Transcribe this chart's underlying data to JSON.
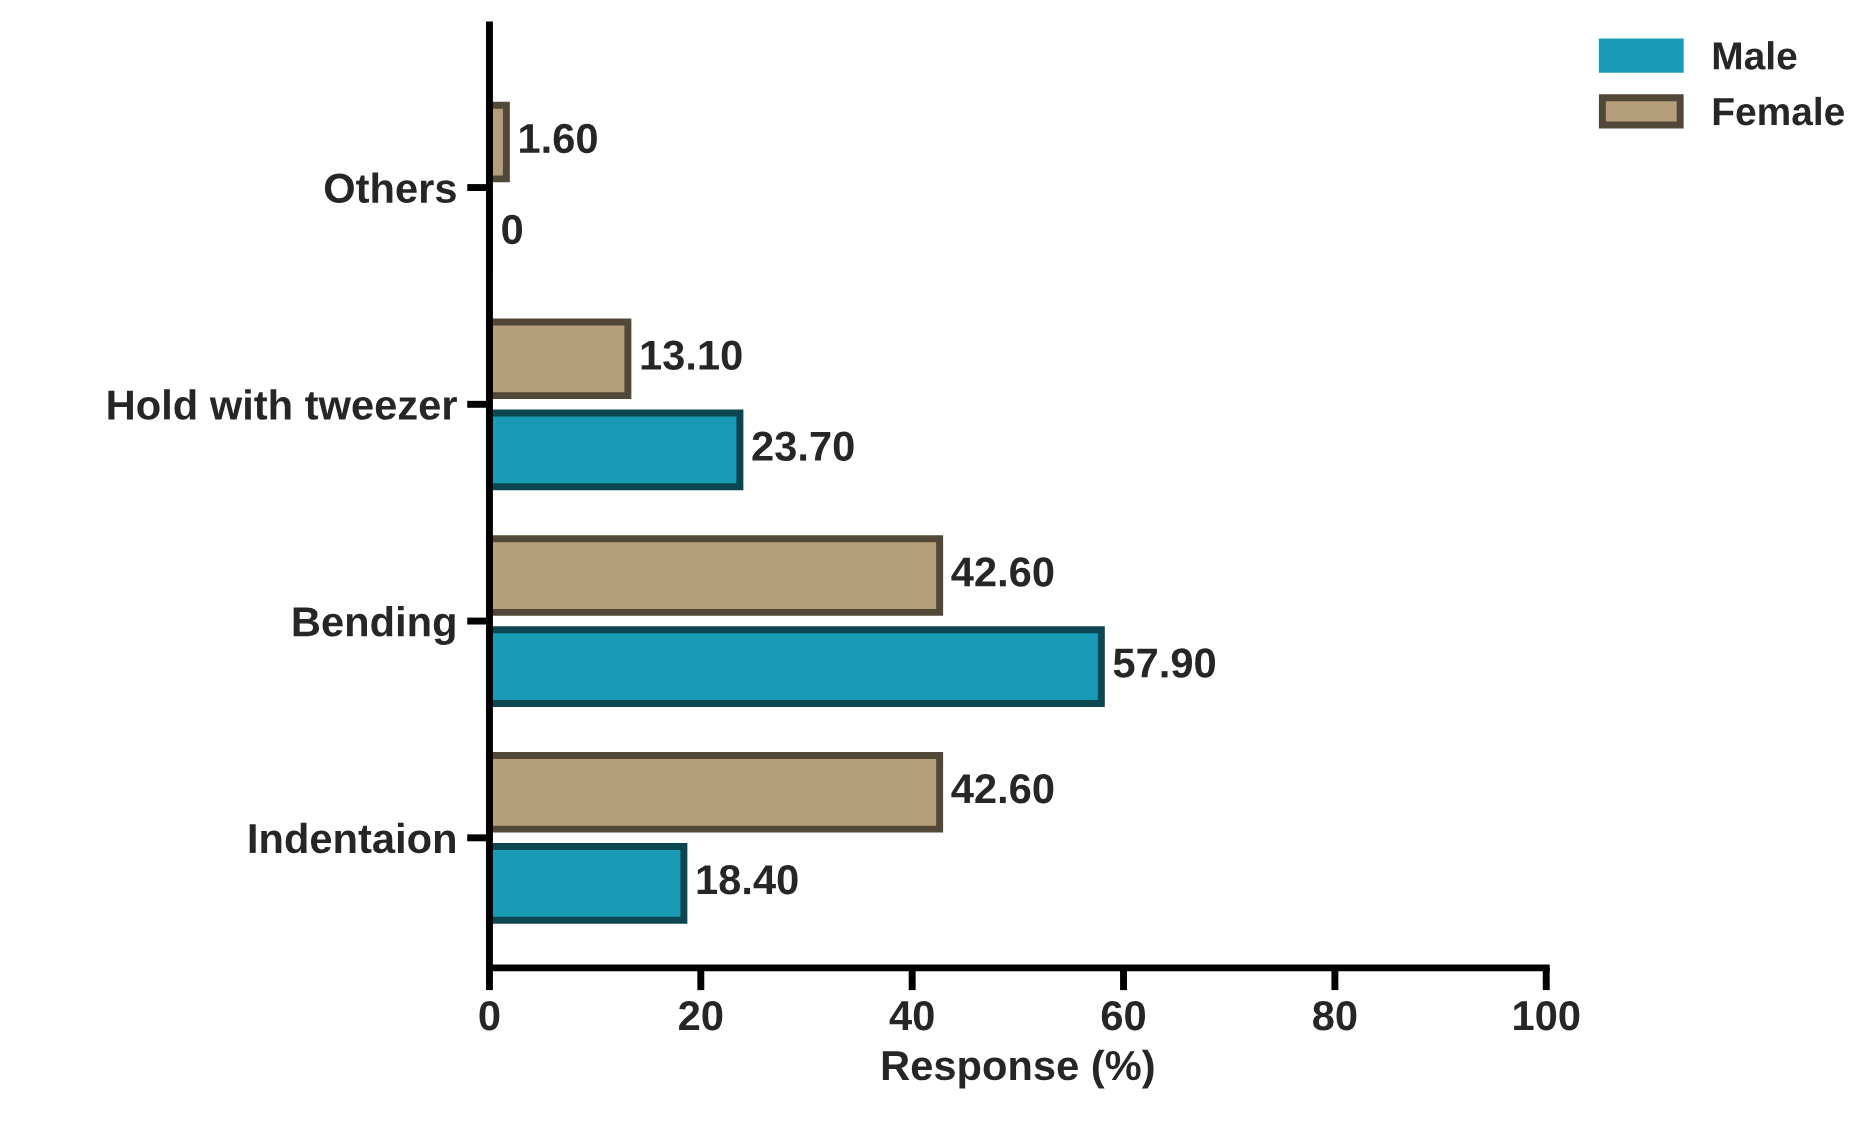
{
  "chart_data": {
    "type": "bar",
    "orientation": "horizontal",
    "xlabel": "Response (%)",
    "categories": [
      "Others",
      "Hold with tweezer",
      "Bending",
      "Indentaion"
    ],
    "series": [
      {
        "name": "Male",
        "color": "#1a9bb5",
        "values": [
          0,
          23.7,
          57.9,
          18.4
        ],
        "value_labels": [
          "0",
          "23.70",
          "57.90",
          "18.40"
        ]
      },
      {
        "name": "Female",
        "color": "#b59f7a",
        "values": [
          1.6,
          13.1,
          42.6,
          42.6
        ],
        "value_labels": [
          "1.60",
          "13.10",
          "42.60",
          "42.60"
        ]
      }
    ],
    "xlim": [
      0,
      100
    ],
    "xticks": [
      0,
      20,
      40,
      60,
      80,
      100
    ],
    "grid": false,
    "legend": "top right"
  }
}
